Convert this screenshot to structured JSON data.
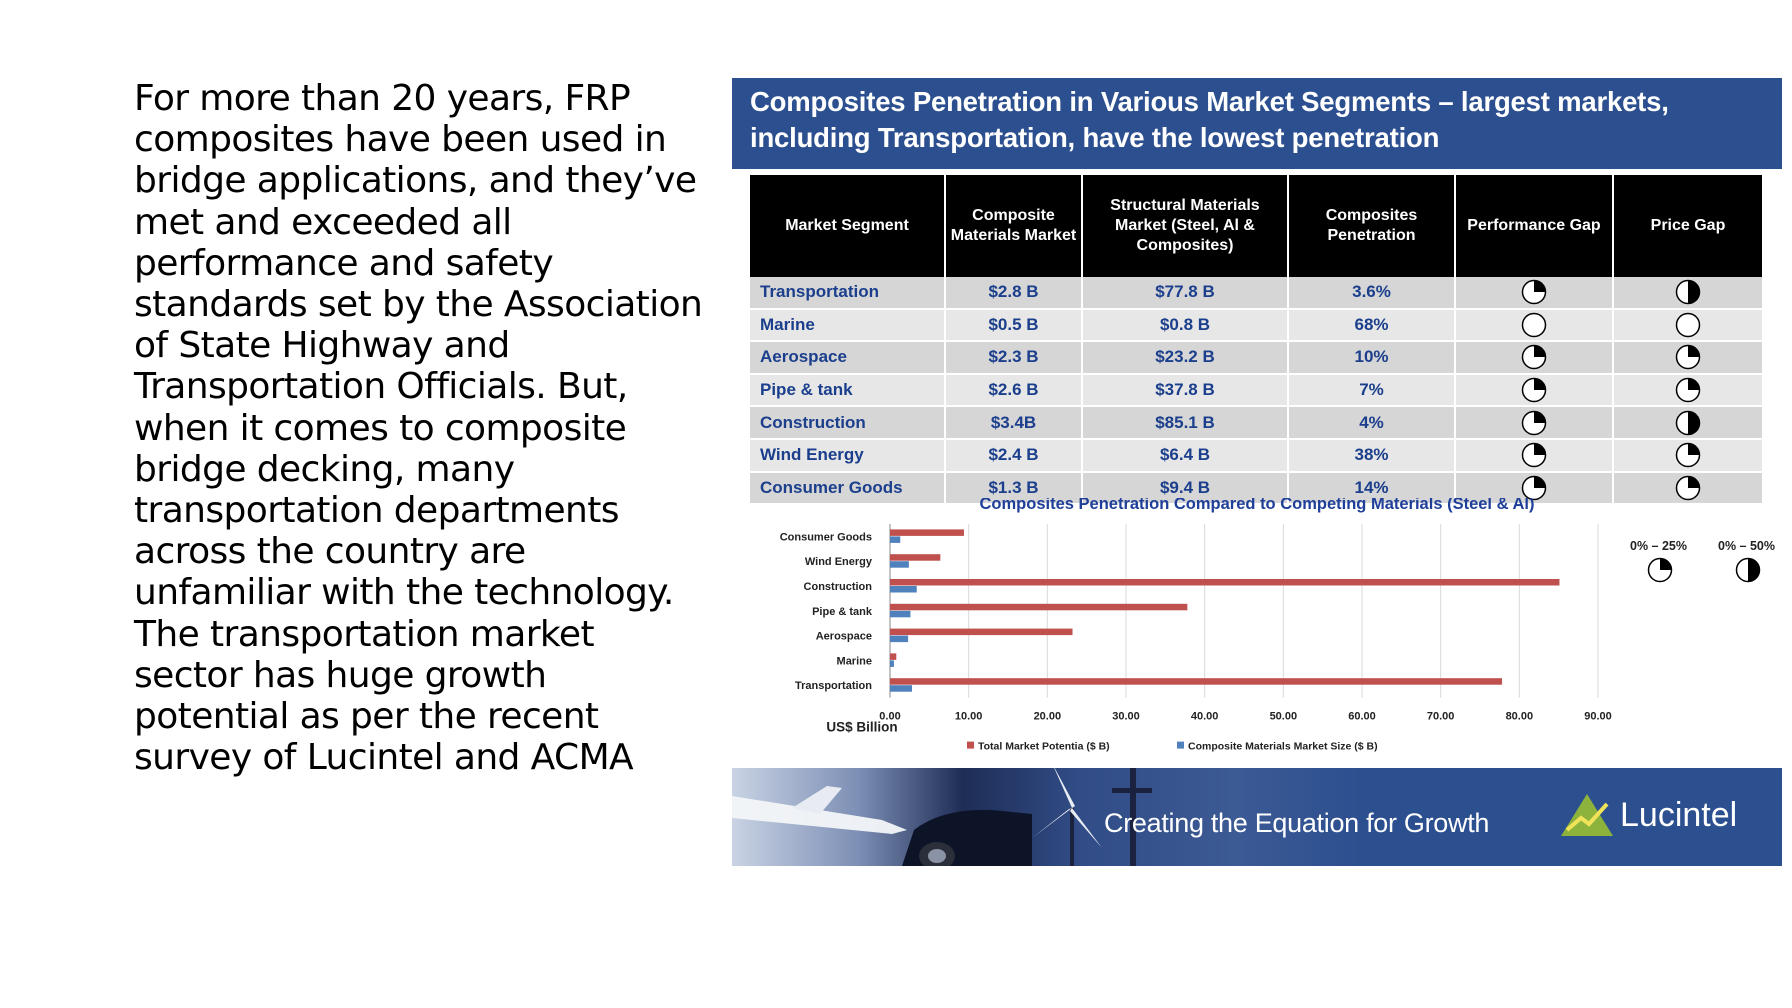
{
  "body_text": {
    "lines": [
      "For more than 20 years, FRP",
      "composites have been used in",
      "bridge applications, and they’ve",
      "met and exceeded all",
      "performance and safety",
      "standards set by the Association",
      "of State Highway and",
      "Transportation Officials. But,",
      "when it comes to composite",
      "bridge decking, many",
      "transportation departments",
      "across the country are",
      "unfamiliar with the technology.",
      "The transportation market",
      "sector has huge growth",
      "potential as per the recent",
      "survey of Lucintel and ACMA"
    ]
  },
  "figure": {
    "title_line1": "Composites Penetration in Various Market Segments – largest markets,",
    "title_line2": "including Transportation, have the lowest penetration",
    "table": {
      "headers": [
        "Market Segment",
        "Composite Materials Market",
        "Structural Materials Market (Steel, Al & Composites)",
        "Composites Penetration",
        "Performance Gap",
        "Price Gap"
      ],
      "rows": [
        {
          "segment": "Transportation",
          "composite": "$2.8 B",
          "structural": "$77.8 B",
          "penetration": "3.6%",
          "performance_gap": 0.25,
          "price_gap": 0.5
        },
        {
          "segment": "Marine",
          "composite": "$0.5 B",
          "structural": "$0.8 B",
          "penetration": "68%",
          "performance_gap": 0,
          "price_gap": 0
        },
        {
          "segment": "Aerospace",
          "composite": "$2.3 B",
          "structural": "$23.2 B",
          "penetration": "10%",
          "performance_gap": 0.25,
          "price_gap": 0.25
        },
        {
          "segment": "Pipe & tank",
          "composite": "$2.6 B",
          "structural": "$37.8 B",
          "penetration": "7%",
          "performance_gap": 0.25,
          "price_gap": 0.25
        },
        {
          "segment": "Construction",
          "composite": "$3.4B",
          "structural": "$85.1 B",
          "penetration": "4%",
          "performance_gap": 0.25,
          "price_gap": 0.5
        },
        {
          "segment": "Wind Energy",
          "composite": "$2.4 B",
          "structural": "$6.4 B",
          "penetration": "38%",
          "performance_gap": 0.25,
          "price_gap": 0.25
        },
        {
          "segment": "Consumer Goods",
          "composite": "$1.3 B",
          "structural": "$9.4 B",
          "penetration": "14%",
          "performance_gap": 0.25,
          "price_gap": 0.25
        }
      ]
    },
    "pie_legend": [
      {
        "label": "0% – 25%",
        "fraction": 0.25
      },
      {
        "label": "0% – 50%",
        "fraction": 0.5
      }
    ],
    "banner": {
      "slogan": "Creating the Equation for Growth",
      "brand": "Lucintel"
    },
    "colors": {
      "title_bg": "#2c4f8f",
      "total_series": "#c0504d",
      "composite_series": "#4f81bd",
      "chart_title": "#1f3f99",
      "table_text": "#1b3f8c"
    }
  },
  "chart_data": {
    "type": "bar",
    "orientation": "horizontal",
    "title": "Composites Penetration Compared to Competing Materials (Steel & Al)",
    "xlabel": "US$ Billion",
    "categories": [
      "Consumer Goods",
      "Wind Energy",
      "Construction",
      "Pipe & tank",
      "Aerospace",
      "Marine",
      "Transportation"
    ],
    "series": [
      {
        "name": "Total Market Potentia ($ B)",
        "values": [
          9.4,
          6.4,
          85.1,
          37.8,
          23.2,
          0.8,
          77.8
        ]
      },
      {
        "name": "Composite Materials Market Size ($ B)",
        "values": [
          1.3,
          2.4,
          3.4,
          2.6,
          2.3,
          0.5,
          2.8
        ]
      }
    ],
    "xlim": [
      0,
      90
    ],
    "xticks": [
      "0.00",
      "10.00",
      "20.00",
      "30.00",
      "40.00",
      "50.00",
      "60.00",
      "70.00",
      "80.00",
      "90.00"
    ],
    "grid": true,
    "legend": "bottom"
  }
}
